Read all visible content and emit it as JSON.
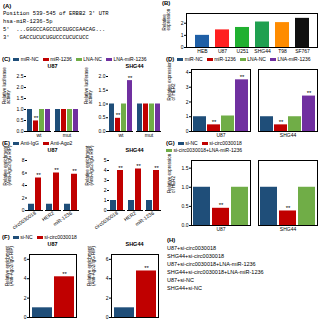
{
  "chart_data": [
    {
      "type": "text",
      "title": "(A)",
      "annotations": [
        "Position 539-545 of ERBB2 3' UTR",
        "hsa-miR-1236-5p",
        "5'  ...GGGCCAGCCUCGUGCGAACAG...",
        "3'   GACCUCUCUGUCCCUCUCUCC"
      ]
    },
    {
      "type": "bar",
      "categories": [
        "HEB",
        "U87",
        "U251",
        "SHG44",
        "T98",
        "SF767"
      ],
      "values": [
        1.0,
        1.45,
        1.65,
        2.1,
        2.05,
        2.4
      ],
      "colors": [
        "#1f5fa6",
        "#ff2020",
        "#20b030",
        "#20a050",
        "#ff8c00",
        "#101010"
      ],
      "ylabel": "Relative\nexpression",
      "ylim": [
        0,
        2.8
      ],
      "yticks": [
        0,
        1,
        2
      ],
      "annotations": [
        {
          "text": "(B)"
        }
      ]
    },
    {
      "type": "bar",
      "title": "U87",
      "categories": [
        "wt",
        "mut"
      ],
      "series": [
        {
          "name": "miR-NC",
          "color": "#1f4e79",
          "values": [
            1.0,
            1.0
          ]
        },
        {
          "name": "miR-1236",
          "color": "#c00000",
          "values": [
            0.48,
            1.0
          ]
        },
        {
          "name": "LNA-NC",
          "color": "#70ad47",
          "values": [
            1.0,
            1.0
          ]
        },
        {
          "name": "LNA-miR-1236",
          "color": "#7030a0",
          "values": [
            1.0,
            1.0
          ]
        }
      ],
      "ylabel": "Relative luciferase\nactivity",
      "ylim": [
        0,
        2.5
      ],
      "yticks": [
        {
          "value": 0,
          "label": "0.0"
        },
        0.5,
        {
          "value": 1.0,
          "label": "1.0"
        },
        1.5,
        {
          "value": 2.0,
          "label": "2.0"
        },
        2.5
      ],
      "annotations": [
        {
          "text": "(C)"
        },
        {
          "text": "**",
          "category": "wt",
          "series": "miR-1236"
        }
      ]
    },
    {
      "type": "bar",
      "title": "SHG44",
      "categories": [
        "wt",
        "mut"
      ],
      "series": [
        {
          "name": "miR-NC",
          "color": "#1f4e79",
          "values": [
            1.0,
            1.0
          ]
        },
        {
          "name": "miR-1236",
          "color": "#c00000",
          "values": [
            0.48,
            1.0
          ]
        },
        {
          "name": "LNA-NC",
          "color": "#70ad47",
          "values": [
            1.0,
            1.0
          ]
        },
        {
          "name": "LNA-miR-1236",
          "color": "#7030a0",
          "values": [
            1.85,
            1.0
          ]
        }
      ],
      "ylabel": "Relative luciferase\nactivity",
      "ylim": [
        0,
        2.0
      ],
      "yticks": [
        {
          "value": 0,
          "label": "0.0"
        },
        0.5,
        {
          "value": 1.0,
          "label": "1.0"
        },
        1.5,
        {
          "value": 2.0,
          "label": "2.0"
        }
      ],
      "legend": "top",
      "annotations": [
        {
          "text": "**",
          "category": "wt",
          "series": "miR-1236"
        },
        {
          "text": "**",
          "category": "wt",
          "series": "LNA-miR-1236"
        }
      ]
    },
    {
      "type": "bar",
      "categories": [
        "U87",
        "SHG44"
      ],
      "series": [
        {
          "name": "miR-NC",
          "color": "#1f4e79",
          "values": [
            1.0,
            1.0
          ]
        },
        {
          "name": "miR-1236",
          "color": "#c00000",
          "values": [
            0.45,
            0.45
          ]
        },
        {
          "name": "LNA-NC",
          "color": "#70ad47",
          "values": [
            1.05,
            1.0
          ]
        },
        {
          "name": "LNA-miR-1236",
          "color": "#7030a0",
          "values": [
            3.5,
            2.4
          ]
        }
      ],
      "ylabel": "Relative expression\nof HER2",
      "ylim": [
        0,
        4.2
      ],
      "yticks": [
        0,
        1,
        2,
        3,
        4
      ],
      "legend": "top",
      "annotations": [
        {
          "text": "(D)"
        },
        {
          "text": "**",
          "category": "U87",
          "series": "miR-1236"
        },
        {
          "text": "**",
          "category": "U87",
          "series": "LNA-miR-1236"
        },
        {
          "text": "**",
          "category": "SHG44",
          "series": "miR-1236"
        },
        {
          "text": "**",
          "category": "SHG44",
          "series": "LNA-miR-1236"
        }
      ]
    },
    {
      "type": "bar",
      "title": "U87",
      "categories": [
        "circ0030018",
        "HER2",
        "miR-1236"
      ],
      "series": [
        {
          "name": "Anti-IgG",
          "color": "#1f4e79",
          "values": [
            1.0,
            1.0,
            1.0
          ]
        },
        {
          "name": "Anti-Ago2",
          "color": "#c00000",
          "values": [
            5.2,
            6.0,
            5.8
          ]
        }
      ],
      "ylabel": "Relative enrichment\n(Anti-Ago2/IgG RIP)",
      "ylim": [
        0,
        8
      ],
      "yticks": [
        0,
        2,
        4,
        6,
        8
      ],
      "annotations": [
        {
          "text": "(E)"
        },
        {
          "text": "**",
          "category": "circ0030018",
          "series": "Anti-Ago2"
        },
        {
          "text": "**",
          "category": "HER2",
          "series": "Anti-Ago2"
        },
        {
          "text": "**",
          "category": "miR-1236",
          "series": "Anti-Ago2"
        }
      ]
    },
    {
      "type": "bar",
      "title": "SHG44",
      "categories": [
        "circ0030018",
        "HER2",
        "miR-1236"
      ],
      "series": [
        {
          "name": "Anti-IgG",
          "color": "#1f4e79",
          "values": [
            1.0,
            1.0,
            1.0
          ]
        },
        {
          "name": "Anti-Ago2",
          "color": "#c00000",
          "values": [
            4.0,
            4.15,
            4.0
          ]
        }
      ],
      "ylabel": "Relative enrichment\n(Anti-Ago2/IgG RIP)",
      "ylim": [
        0,
        5
      ],
      "yticks": [
        0,
        1,
        2,
        3,
        4,
        5
      ],
      "legend": "top",
      "annotations": [
        {
          "text": "**",
          "category": "circ0030018",
          "series": "Anti-Ago2"
        },
        {
          "text": "**",
          "category": "HER2",
          "series": "Anti-Ago2"
        },
        {
          "text": "**",
          "category": "miR-1236",
          "series": "Anti-Ago2"
        }
      ]
    },
    {
      "type": "bar",
      "categories": [
        "U87",
        "SHG44"
      ],
      "series": [
        {
          "name": "si-NC",
          "color": "#1f4e79",
          "values": [
            1.0,
            1.0
          ]
        },
        {
          "name": "si-circ0030018",
          "color": "#c00000",
          "values": [
            0.45,
            0.38
          ]
        },
        {
          "name": "si-circ0030018+LNA-miR-1236",
          "color": "#70ad47",
          "values": [
            1.0,
            1.0
          ]
        }
      ],
      "ylabel": "Relative expression\nof HER2",
      "ylim": [
        0,
        1.7
      ],
      "yticks": [
        {
          "value": 0.0,
          "label": "0.0"
        },
        0.5,
        {
          "value": 1.0,
          "label": "1.0"
        },
        1.5
      ],
      "legend": "top",
      "annotations": [
        {
          "text": "(G)"
        },
        {
          "text": "**",
          "category": "U87",
          "series": "si-circ0030018"
        },
        {
          "text": "**",
          "category": "SHG44",
          "series": "si-circ0030018"
        }
      ]
    },
    {
      "type": "bar",
      "title": "U87",
      "categories": [
        null
      ],
      "series": [
        {
          "name": "si-NC",
          "color": "#1f4e79",
          "values": [
            1.0
          ]
        },
        {
          "name": "si-circ0030018",
          "color": "#c00000",
          "values": [
            4.2
          ]
        }
      ],
      "ylabel": "Relative enrichment\n(Anti-Ago2/IgG RIP)",
      "ylim": [
        0,
        6.5
      ],
      "yticks": [
        0,
        2,
        4,
        6
      ],
      "tick_labels": "y",
      "annotations": [
        {
          "text": "(F)"
        },
        {
          "text": "**",
          "category": null,
          "series": "si-circ0030018"
        }
      ]
    },
    {
      "type": "bar",
      "title": "SHG44",
      "categories": [
        null
      ],
      "series": [
        {
          "name": "si-NC",
          "color": "#1f4e79",
          "values": [
            1.0
          ]
        },
        {
          "name": "si-circ0030018",
          "color": "#c00000",
          "values": [
            4.8
          ]
        }
      ],
      "ylabel": "Relative enrichment\n(Anti-Ago2/IgG RIP)",
      "ylim": [
        0,
        6.5
      ],
      "yticks": [
        0,
        2,
        4,
        6
      ],
      "tick_labels": "y",
      "legend": "top",
      "annotations": [
        {
          "text": "**",
          "category": null,
          "series": "si-circ0030018"
        }
      ]
    },
    {
      "type": "text",
      "title": "(H)",
      "annotations": [
        "U87+si-circ0030018",
        "SHG44+si-circ0030018",
        "U87+si-circ0030018+LNA-miR-1236",
        "SHG44+si-circ0030018+LNA-miR-1236",
        "U87+si-NC",
        "SHG44+si-NC"
      ]
    }
  ]
}
